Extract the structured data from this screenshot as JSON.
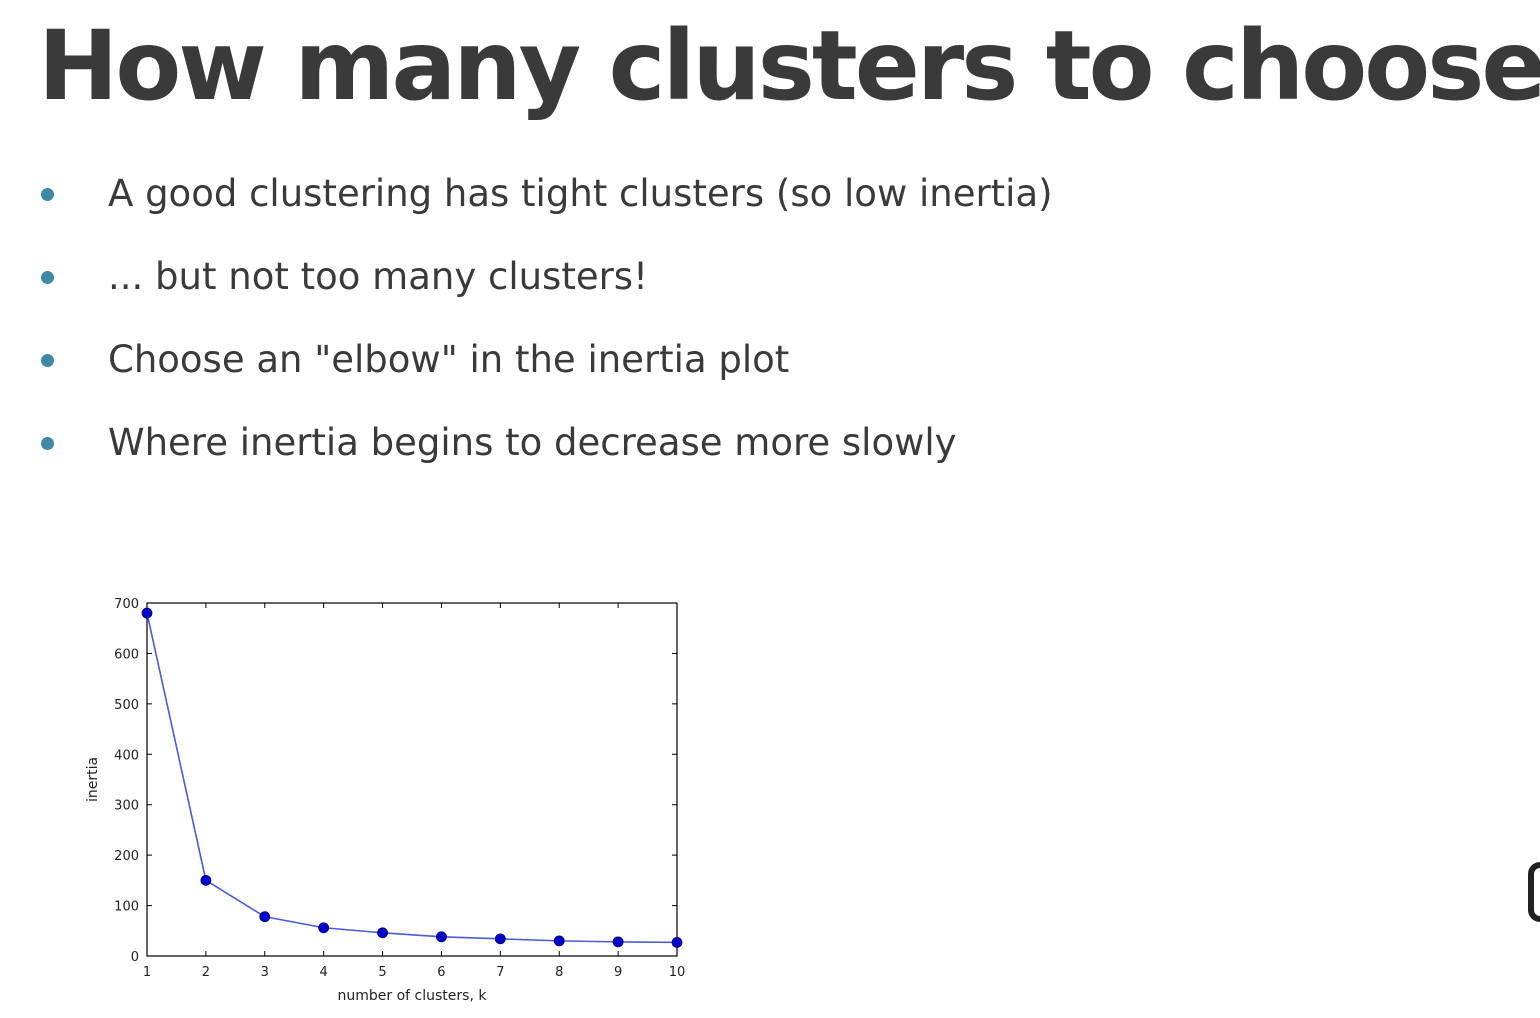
{
  "slide": {
    "title": "How many clusters to choose?",
    "bullets": [
      "A good clustering has tight clusters (so low inertia)",
      "... but not too many clusters!",
      "Choose an \"elbow\" in the inertia plot",
      "Where inertia begins to decrease more slowly"
    ],
    "bullet_color": "#3f88a6",
    "title_color": "#3a3a3a"
  },
  "chart_data": {
    "type": "line",
    "title": "",
    "xlabel": "number of clusters, k",
    "ylabel": "inertia",
    "x": [
      1,
      2,
      3,
      4,
      5,
      6,
      7,
      8,
      9,
      10
    ],
    "series": [
      {
        "values": [
          680,
          150,
          78,
          56,
          46,
          38,
          34,
          30,
          28,
          27
        ],
        "color": "#0000cc",
        "line_color": "#4b5bd6"
      }
    ],
    "xlim": [
      1,
      10
    ],
    "ylim": [
      0,
      700
    ],
    "xticks": [
      "1",
      "2",
      "3",
      "4",
      "5",
      "6",
      "7",
      "8",
      "9",
      "10"
    ],
    "yticks": [
      "0",
      "100",
      "200",
      "300",
      "400",
      "500",
      "600",
      "700"
    ],
    "grid": false,
    "marker": "circle"
  }
}
